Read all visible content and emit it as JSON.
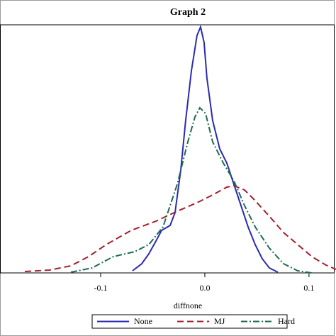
{
  "chart_data": {
    "type": "line",
    "title": "Graph 2",
    "x_label": "diffnone",
    "xlim": [
      -0.1966,
      0.1259
    ],
    "xticks": [
      -0.1,
      {
        "value": 0,
        "label": "0.0"
      },
      0.1
    ],
    "ylim": [
      0,
      28
    ],
    "legend": "bottom",
    "series": [
      {
        "name": "None",
        "color": "#2b2bb0",
        "dash": "solid",
        "x": [
          -0.0694,
          -0.0605,
          -0.0537,
          -0.0469,
          -0.0415,
          -0.0333,
          -0.0286,
          -0.0231,
          -0.0184,
          -0.0129,
          -0.0075,
          -0.0041,
          -0.0007,
          0.002,
          0.0075,
          0.0143,
          0.0211,
          0.0279,
          0.0347,
          0.0415,
          0.0483,
          0.0551,
          0.0619,
          0.0701
        ],
        "values": [
          0.24,
          1.04,
          2.16,
          3.6,
          4.8,
          5.36,
          6.8,
          11.6,
          17.2,
          22.8,
          26.8,
          27.76,
          26.0,
          22.0,
          17.2,
          14.0,
          12.4,
          10.0,
          7.6,
          5.2,
          3.2,
          1.6,
          0.56,
          0.08
        ]
      },
      {
        "name": "MJ",
        "color": "#a3202e",
        "dash": "dashed",
        "x": [
          -0.1728,
          -0.149,
          -0.1286,
          -0.1116,
          -0.0946,
          -0.0707,
          -0.0469,
          -0.0265,
          -0.0061,
          0.0075,
          0.0211,
          0.0279,
          0.0381,
          0.0483,
          0.0619,
          0.0755,
          0.0891,
          0.1027,
          0.1163,
          0.1259
        ],
        "values": [
          0.16,
          0.32,
          0.8,
          1.84,
          3.2,
          4.8,
          5.84,
          6.96,
          8.0,
          8.8,
          9.68,
          9.84,
          9.36,
          8.16,
          6.4,
          4.56,
          3.2,
          1.84,
          0.88,
          0.4
        ]
      },
      {
        "name": "Hard",
        "color": "#1e6b52",
        "dash": "dashdot",
        "x": [
          -0.1286,
          -0.1082,
          -0.0878,
          -0.0673,
          -0.0537,
          -0.0401,
          -0.0265,
          -0.0163,
          -0.0095,
          -0.0048,
          0.0007,
          0.0075,
          0.0177,
          0.0279,
          0.0381,
          0.0483,
          0.0619,
          0.0755,
          0.0891,
          0.1027
        ],
        "values": [
          0.08,
          0.56,
          1.84,
          2.4,
          3.2,
          5.2,
          10.0,
          14.8,
          17.6,
          18.64,
          18.0,
          14.8,
          12.4,
          10.4,
          7.6,
          5.2,
          2.8,
          1.04,
          0.24,
          0.0
        ]
      }
    ]
  }
}
